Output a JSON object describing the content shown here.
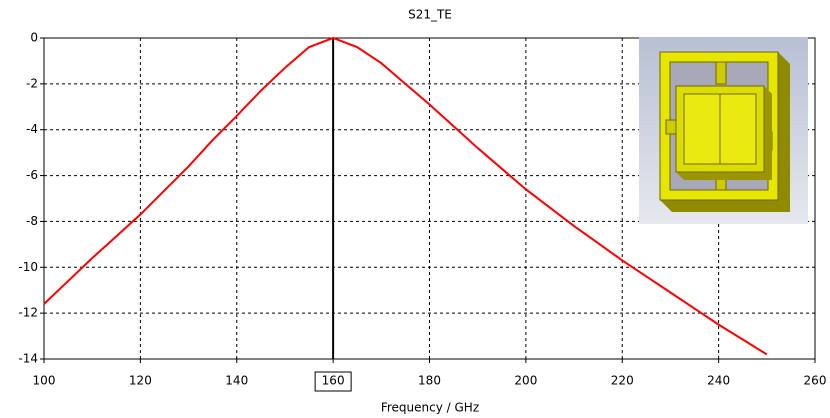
{
  "chart_data": {
    "type": "line",
    "title": "S21_TE",
    "xlabel": "Frequency / GHz",
    "x": [
      100,
      105,
      110,
      115,
      120,
      125,
      130,
      135,
      140,
      145,
      150,
      155,
      160,
      165,
      170,
      175,
      180,
      185,
      190,
      195,
      200,
      205,
      210,
      215,
      220,
      225,
      230,
      235,
      240,
      245,
      250
    ],
    "values": [
      -11.6,
      -10.6,
      -9.6,
      -8.65,
      -7.7,
      -6.65,
      -5.6,
      -4.45,
      -3.4,
      -2.3,
      -1.3,
      -0.4,
      0,
      -0.4,
      -1.1,
      -2.0,
      -2.9,
      -3.85,
      -4.8,
      -5.7,
      -6.6,
      -7.4,
      -8.2,
      -8.95,
      -9.7,
      -10.4,
      -11.1,
      -11.8,
      -12.5,
      -13.15,
      -13.8
    ],
    "color": "#ff0000",
    "marker_x": 160,
    "xlim": [
      100,
      260
    ],
    "xticks": [
      100,
      120,
      140,
      160,
      180,
      200,
      220,
      240,
      260
    ],
    "ylim": [
      -14,
      0
    ],
    "yticks": [
      0,
      -2,
      -4,
      -6,
      -8,
      -10,
      -12,
      -14
    ],
    "grid": true
  }
}
